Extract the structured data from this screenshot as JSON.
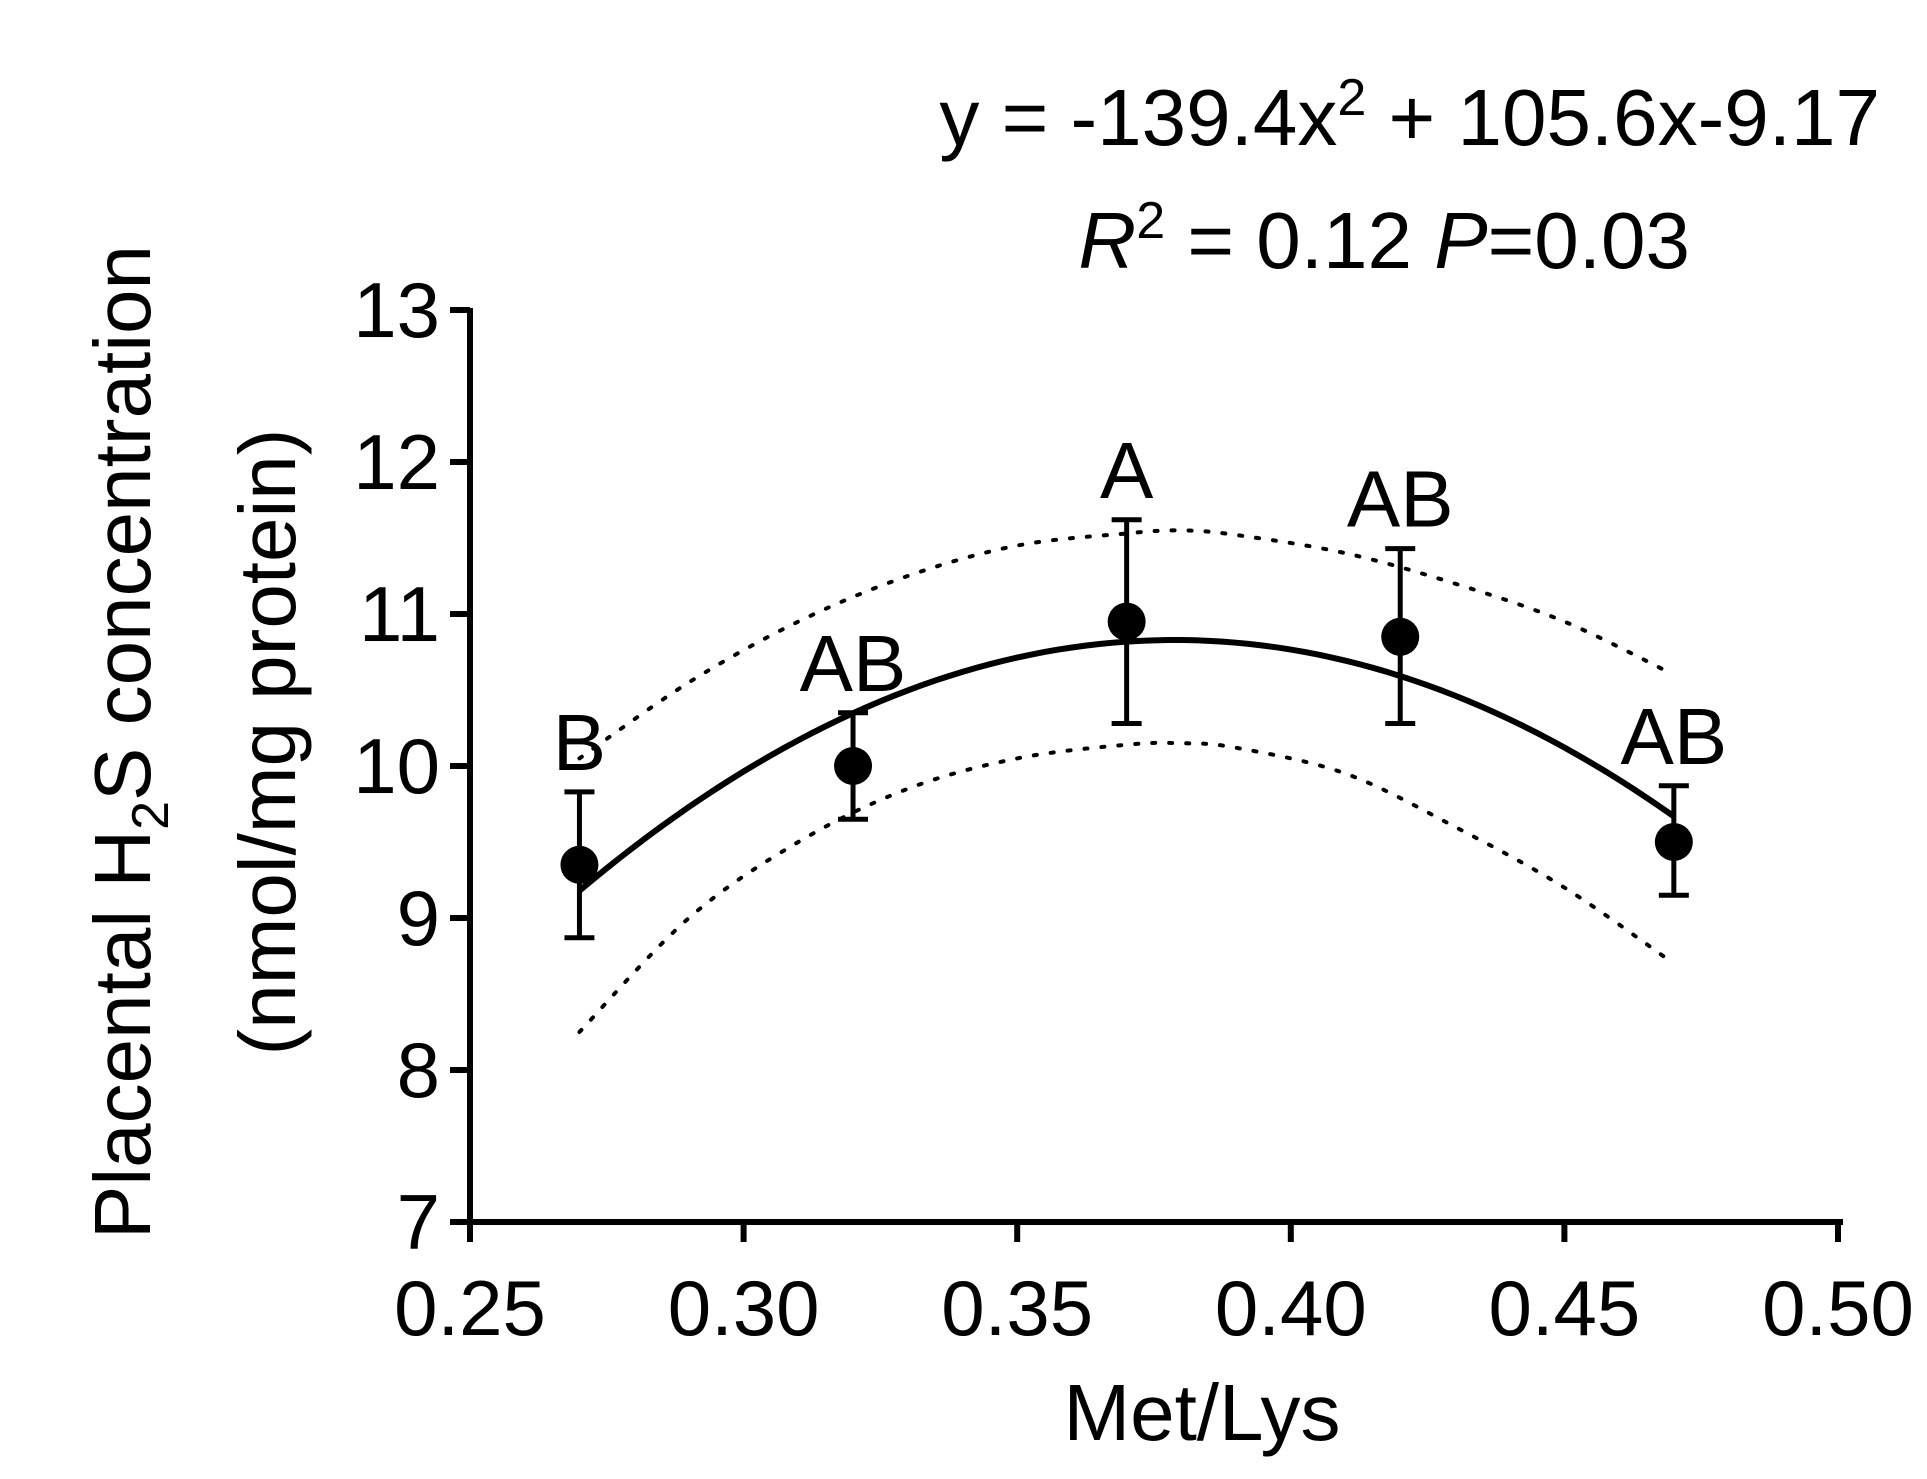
{
  "chart_data": {
    "type": "scatter",
    "xlabel": "Met/Lys",
    "ylabel": "(nmol/mg protein)",
    "xlim": [
      0.25,
      0.5
    ],
    "ylim": [
      7,
      13
    ],
    "x_ticks": [
      "0.25",
      "0.30",
      "0.35",
      "0.40",
      "0.45",
      "0.50"
    ],
    "y_ticks": [
      "7",
      "8",
      "9",
      "10",
      "11",
      "12",
      "13"
    ],
    "y_axis_title": {
      "prefix": "Placental H",
      "subscript": "2",
      "suffix": "S concentration"
    },
    "equation": {
      "line1_prefix": "y = -139.4x",
      "line1_sup": "2",
      "line1_suffix": " + 105.6x-9.17",
      "r_label": "R",
      "r_sup": "2",
      "r_value": " = 0.12 ",
      "p_label": "P",
      "p_value": "=0.03"
    },
    "fit": {
      "a": -139.4,
      "b": 105.6,
      "c": -9.17,
      "x_range": [
        0.27,
        0.47
      ]
    },
    "ci_upper": {
      "x": [
        0.27,
        0.29,
        0.31,
        0.33,
        0.35,
        0.37,
        0.38,
        0.39,
        0.41,
        0.43,
        0.45,
        0.47
      ],
      "y": [
        10.05,
        10.55,
        10.95,
        11.25,
        11.45,
        11.53,
        11.55,
        11.52,
        11.4,
        11.2,
        10.95,
        10.6
      ]
    },
    "ci_lower": {
      "x": [
        0.27,
        0.29,
        0.31,
        0.33,
        0.35,
        0.37,
        0.38,
        0.39,
        0.41,
        0.43,
        0.45,
        0.47
      ],
      "y": [
        8.25,
        9.0,
        9.5,
        9.85,
        10.05,
        10.14,
        10.15,
        10.12,
        9.95,
        9.6,
        9.2,
        8.7
      ]
    },
    "points": [
      {
        "x": 0.27,
        "y": 9.35,
        "err_low": 8.87,
        "err_high": 9.83,
        "group": "B"
      },
      {
        "x": 0.32,
        "y": 10.0,
        "err_low": 9.65,
        "err_high": 10.35,
        "group": "AB"
      },
      {
        "x": 0.37,
        "y": 10.95,
        "err_low": 10.28,
        "err_high": 11.62,
        "group": "A"
      },
      {
        "x": 0.42,
        "y": 10.85,
        "err_low": 10.28,
        "err_high": 11.43,
        "group": "AB"
      },
      {
        "x": 0.47,
        "y": 9.5,
        "err_low": 9.15,
        "err_high": 9.87,
        "group": "AB"
      }
    ]
  }
}
